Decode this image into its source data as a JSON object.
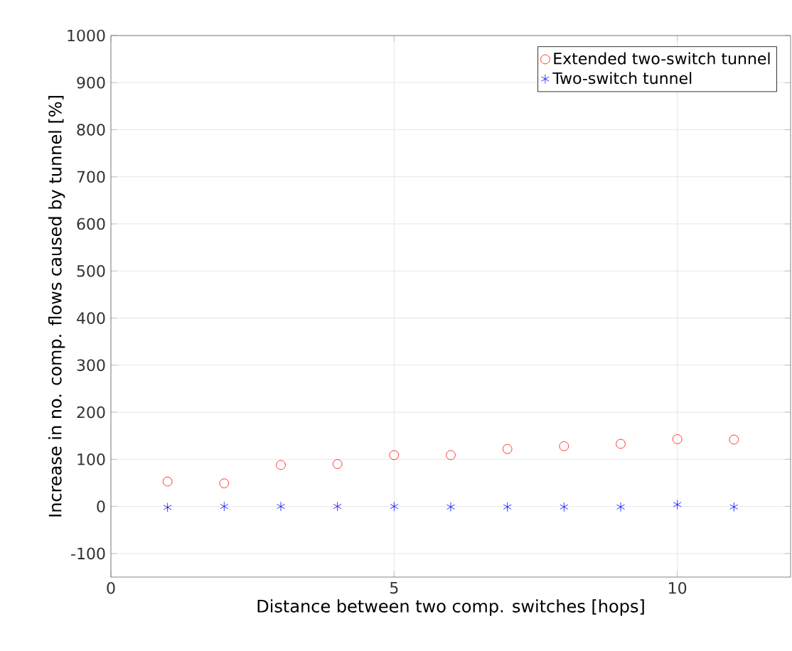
{
  "chart_data": {
    "type": "scatter",
    "xlabel": "Distance between two comp. switches [hops]",
    "ylabel": "Increase in no. comp. flows caused by tunnel [%]",
    "x": [
      1,
      2,
      3,
      4,
      5,
      6,
      7,
      8,
      9,
      10,
      11
    ],
    "series": [
      {
        "name": "Extended two-switch tunnel",
        "color": "#ff0000",
        "marker": "circle",
        "values": [
          53,
          49,
          88,
          90,
          109,
          109,
          122,
          128,
          133,
          143,
          142
        ]
      },
      {
        "name": "Two-switch tunnel",
        "color": "#0000ff",
        "marker": "cross",
        "values": [
          -2,
          0,
          0,
          0,
          0,
          -1,
          -1,
          -1,
          -1,
          4,
          -1
        ]
      }
    ],
    "xlim": [
      0,
      12
    ],
    "ylim": [
      -150,
      1000
    ],
    "xticks": [
      0,
      5,
      10
    ],
    "yticks": [
      -100,
      0,
      100,
      200,
      300,
      400,
      500,
      600,
      700,
      800,
      900,
      1000
    ],
    "grid": true,
    "legend": "top right"
  }
}
